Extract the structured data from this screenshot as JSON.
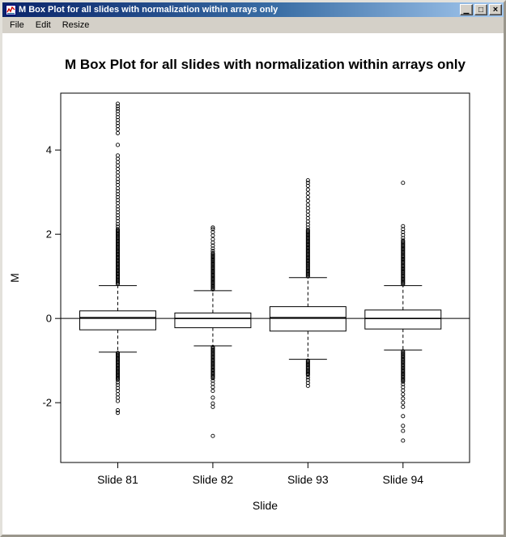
{
  "window": {
    "title": "M Box Plot for all slides with normalization within arrays only",
    "controls": {
      "minimize": "▁",
      "maximize": "□",
      "close": "×"
    }
  },
  "menu": {
    "items": [
      {
        "label": "File"
      },
      {
        "label": "Edit"
      },
      {
        "label": "Resize"
      }
    ]
  },
  "colors": {
    "titlebar_left": "#0a246a",
    "titlebar_right": "#a6caf0",
    "chrome": "#d4d0c8",
    "plot_background": "#ffffff",
    "stroke": "#000000"
  },
  "chart_data": {
    "type": "boxplot",
    "title": "M Box Plot for all slides with normalization within arrays only",
    "xlabel": "Slide",
    "ylabel": "M",
    "ylim": [
      -3.42,
      5.35
    ],
    "yticks": [
      -2,
      0,
      2,
      4
    ],
    "xlim": [
      0.4,
      4.7
    ],
    "box_width": 0.8,
    "reference_line_y": 0,
    "grid": false,
    "categories": [
      "Slide 81",
      "Slide 82",
      "Slide 93",
      "Slide 94"
    ],
    "series": [
      {
        "name": "Slide 81",
        "q1": -0.27,
        "median": 0.02,
        "q3": 0.18,
        "whisker_low": -0.8,
        "whisker_high": 0.78,
        "outliers_above": {
          "dense": {
            "from": 0.82,
            "to": 2.12,
            "count": 52
          },
          "scatter": [
            2.18,
            2.24,
            2.31,
            2.38,
            2.45,
            2.52,
            2.59,
            2.66,
            2.74,
            2.81,
            2.88,
            2.95,
            3.02,
            3.09,
            3.17,
            3.24,
            3.31,
            3.39,
            3.47,
            3.55,
            3.63,
            3.71,
            3.79,
            3.87,
            4.12,
            4.4,
            4.49,
            4.57,
            4.64,
            4.71,
            4.78,
            4.85,
            4.92,
            4.98,
            5.04,
            5.1
          ]
        },
        "outliers_below": {
          "dense": {
            "from": -0.82,
            "to": -1.46,
            "count": 26
          },
          "scatter": [
            -1.52,
            -1.58,
            -1.65,
            -1.72,
            -1.8,
            -1.88,
            -1.96,
            -2.18,
            -2.24
          ]
        }
      },
      {
        "name": "Slide 82",
        "q1": -0.22,
        "median": 0.0,
        "q3": 0.13,
        "whisker_low": -0.65,
        "whisker_high": 0.66,
        "outliers_above": {
          "dense": {
            "from": 0.69,
            "to": 1.55,
            "count": 36
          },
          "scatter": [
            1.6,
            1.66,
            1.73,
            1.8,
            1.88,
            1.97,
            2.05,
            2.12,
            2.16
          ]
        },
        "outliers_below": {
          "dense": {
            "from": -0.68,
            "to": -1.42,
            "count": 30
          },
          "scatter": [
            -1.48,
            -1.55,
            -1.63,
            -1.72,
            -1.88,
            -2.02,
            -2.1,
            -2.79
          ]
        }
      },
      {
        "name": "Slide 93",
        "q1": -0.3,
        "median": 0.02,
        "q3": 0.28,
        "whisker_low": -0.97,
        "whisker_high": 0.97,
        "outliers_above": {
          "dense": {
            "from": 1.0,
            "to": 2.1,
            "count": 44
          },
          "scatter": [
            2.16,
            2.23,
            2.3,
            2.38,
            2.46,
            2.54,
            2.62,
            2.7,
            2.79,
            2.88,
            2.97,
            3.06,
            3.15,
            3.22,
            3.28
          ]
        },
        "outliers_below": {
          "dense": {
            "from": -1.0,
            "to": -1.34,
            "count": 14
          },
          "scatter": [
            -1.4,
            -1.46,
            -1.53,
            -1.6
          ]
        }
      },
      {
        "name": "Slide 94",
        "q1": -0.25,
        "median": 0.0,
        "q3": 0.2,
        "whisker_low": -0.75,
        "whisker_high": 0.78,
        "outliers_above": {
          "dense": {
            "from": 0.81,
            "to": 1.85,
            "count": 42
          },
          "scatter": [
            1.91,
            1.98,
            2.05,
            2.12,
            2.19,
            3.22
          ]
        },
        "outliers_below": {
          "dense": {
            "from": -0.78,
            "to": -1.5,
            "count": 28
          },
          "scatter": [
            -1.56,
            -1.63,
            -1.71,
            -1.8,
            -1.9,
            -2.0,
            -2.1,
            -2.32,
            -2.55,
            -2.67,
            -2.9
          ]
        }
      }
    ]
  }
}
